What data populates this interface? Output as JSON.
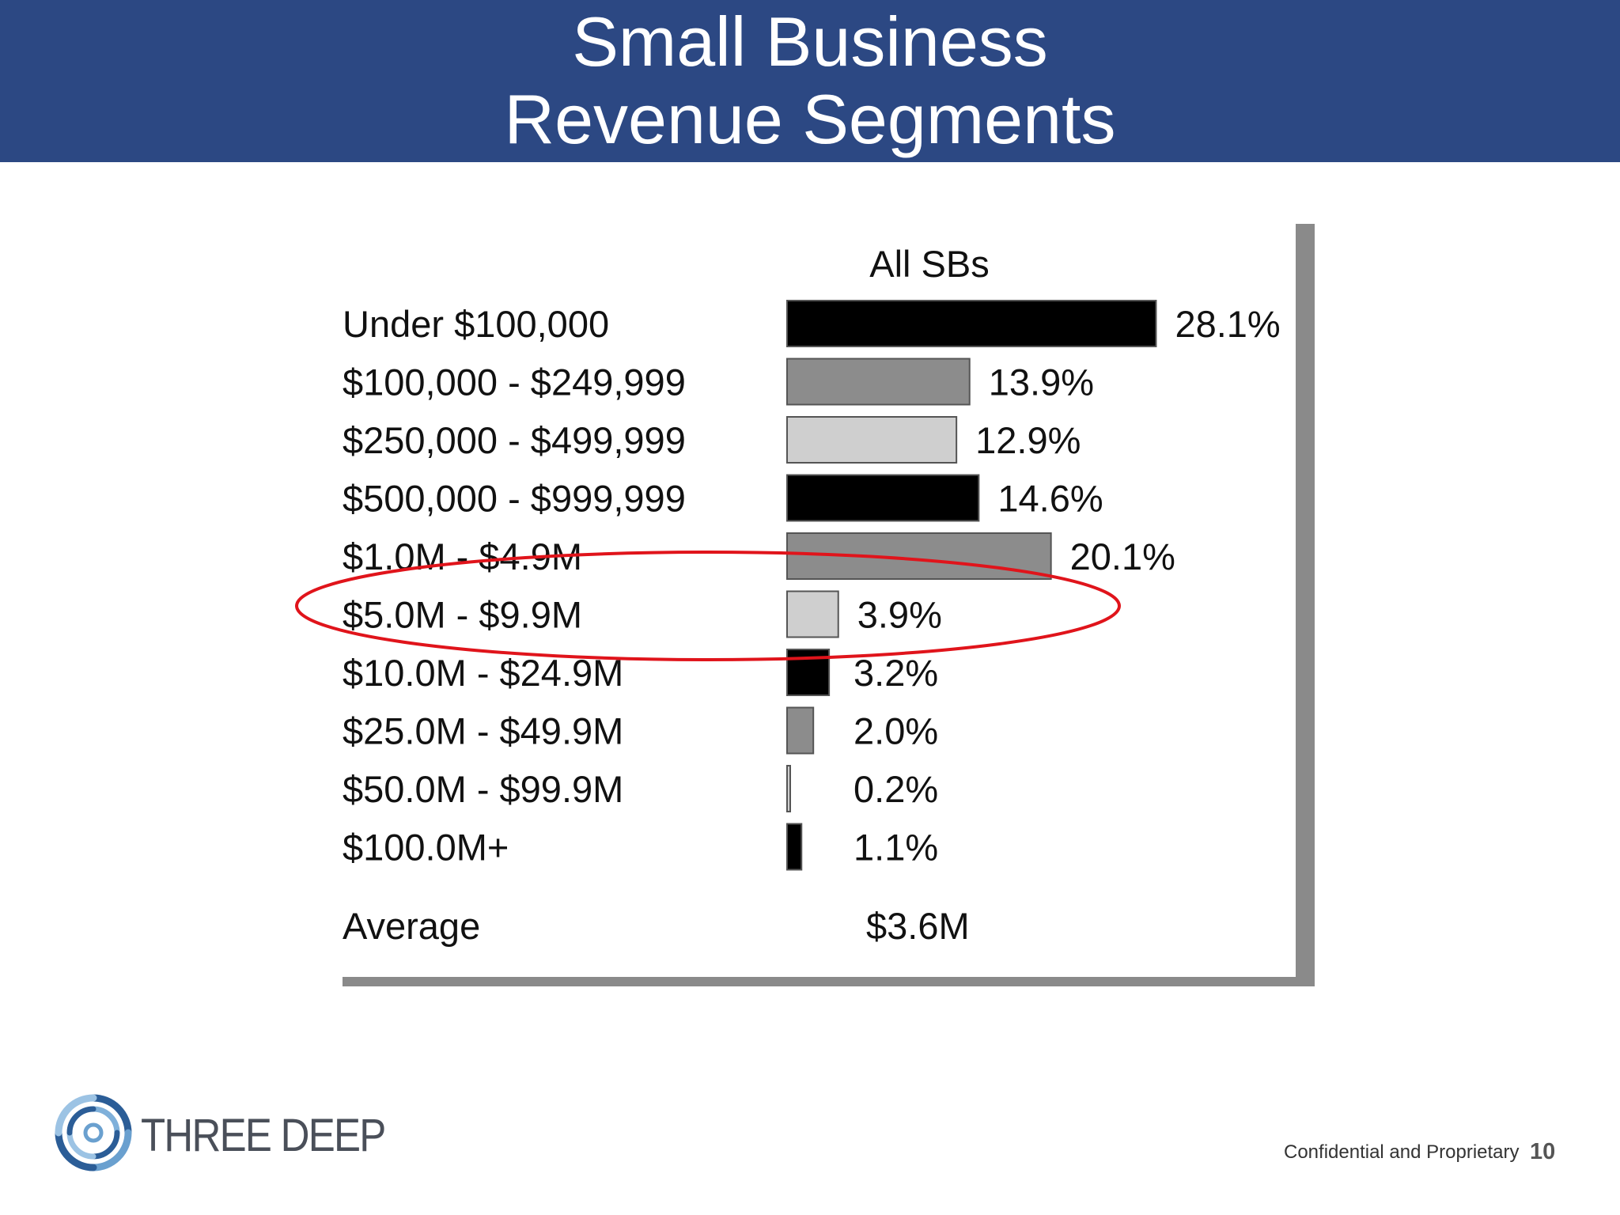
{
  "header": {
    "title_line1": "Small Business",
    "title_line2": "Revenue Segments"
  },
  "chart_data": {
    "type": "bar",
    "orientation": "horizontal",
    "title": "All SBs",
    "categories": [
      "Under $100,000",
      "$100,000 - $249,999",
      "$250,000 - $499,999",
      "$500,000 - $999,999",
      "$1.0M - $4.9M",
      "$5.0M - $9.9M",
      "$10.0M - $24.9M",
      "$25.0M - $49.9M",
      "$50.0M - $99.9M",
      "$100.0M+"
    ],
    "values": [
      28.1,
      13.9,
      12.9,
      14.6,
      20.1,
      3.9,
      3.2,
      2.0,
      0.2,
      1.1
    ],
    "value_labels": [
      "28.1%",
      "13.9%",
      "12.9%",
      "14.6%",
      "20.1%",
      "3.9%",
      "3.2%",
      "2.0%",
      "0.2%",
      "1.1%"
    ],
    "bar_colors": [
      "#000000",
      "#8c8c8c",
      "#cfcfcf",
      "#000000",
      "#8c8c8c",
      "#cfcfcf",
      "#000000",
      "#8c8c8c",
      "#cfcfcf",
      "#000000"
    ],
    "average_label": "Average",
    "average_value": "$3.6M",
    "highlighted_category": "$5.0M - $9.9M",
    "highlight_color": "#e0141b",
    "grid": false,
    "legend": "none"
  },
  "logo": {
    "name": "THREE DEEP",
    "icon": "swirl-logo-icon"
  },
  "footer": {
    "confidential": "Confidential and Proprietary",
    "page_number": "10"
  }
}
